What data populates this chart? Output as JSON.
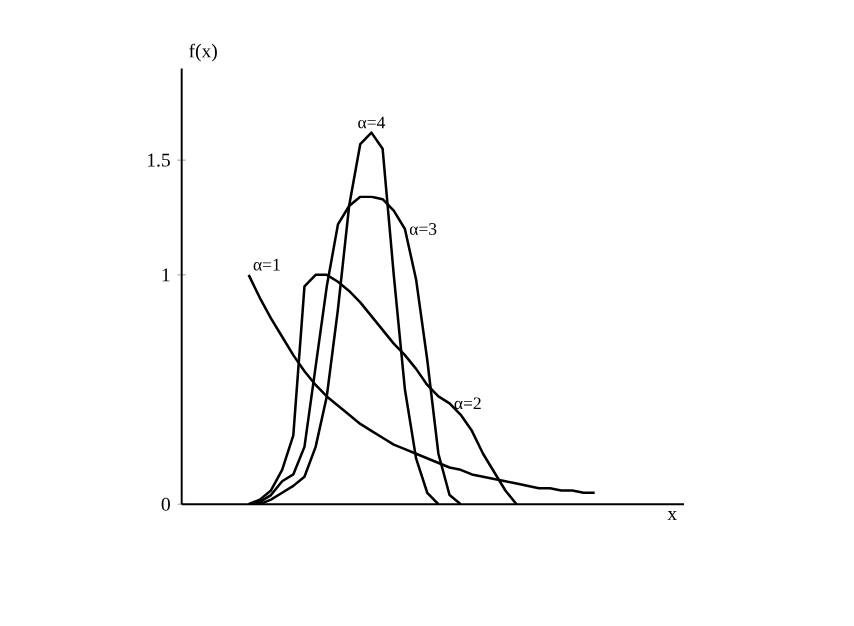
{
  "chart_data": {
    "type": "line",
    "xlabel": "x",
    "ylabel": "f(x)",
    "categories": [
      null,
      null,
      null,
      null,
      null,
      null,
      null,
      null,
      null,
      null,
      null,
      null,
      null,
      null,
      null,
      null,
      null,
      null,
      null,
      null,
      null,
      null,
      null,
      null,
      null,
      null,
      null,
      null,
      null,
      null,
      null,
      null,
      null,
      null,
      null
    ],
    "ylim": [
      0,
      1.9
    ],
    "yticks": [
      0,
      1,
      1.5
    ],
    "grid": false,
    "series": [
      {
        "name": "α=1",
        "color": "#000000",
        "values": [
          1.0,
          0.9,
          0.81,
          0.73,
          0.65,
          0.58,
          0.52,
          0.47,
          0.43,
          0.39,
          0.35,
          0.32,
          0.29,
          0.26,
          0.24,
          0.22,
          0.2,
          0.18,
          0.16,
          0.15,
          0.13,
          0.12,
          0.11,
          0.1,
          0.09,
          0.08,
          0.07,
          0.07,
          0.06,
          0.06,
          0.05,
          0.05,
          null,
          null,
          null
        ]
      },
      {
        "name": "α=2",
        "color": "#000000",
        "values": [
          0,
          0.02,
          0.06,
          0.15,
          0.3,
          0.95,
          1.0,
          1.0,
          0.97,
          0.93,
          0.88,
          0.82,
          0.76,
          0.7,
          0.65,
          0.59,
          0.52,
          0.47,
          0.44,
          0.39,
          0.32,
          0.22,
          0.14,
          0.06,
          0,
          null,
          null,
          null,
          null,
          null,
          null,
          null,
          null,
          null,
          null
        ]
      },
      {
        "name": "α=3",
        "color": "#000000",
        "values": [
          0,
          0.01,
          0.04,
          0.1,
          0.13,
          0.25,
          0.6,
          0.95,
          1.22,
          1.3,
          1.34,
          1.34,
          1.33,
          1.28,
          1.2,
          0.98,
          0.63,
          0.22,
          0.04,
          0,
          null,
          null,
          null,
          null,
          null,
          null,
          null,
          null,
          null,
          null,
          null,
          null,
          null,
          null,
          null
        ]
      },
      {
        "name": "α=4",
        "color": "#000000",
        "values": [
          0,
          0,
          0.02,
          0.05,
          0.08,
          0.12,
          0.25,
          0.47,
          0.85,
          1.3,
          1.57,
          1.62,
          1.55,
          1.0,
          0.5,
          0.2,
          0.05,
          0,
          null,
          null,
          null,
          null,
          null,
          null,
          null,
          null,
          null,
          null,
          null,
          null,
          null,
          null,
          null,
          null,
          null
        ]
      }
    ]
  }
}
